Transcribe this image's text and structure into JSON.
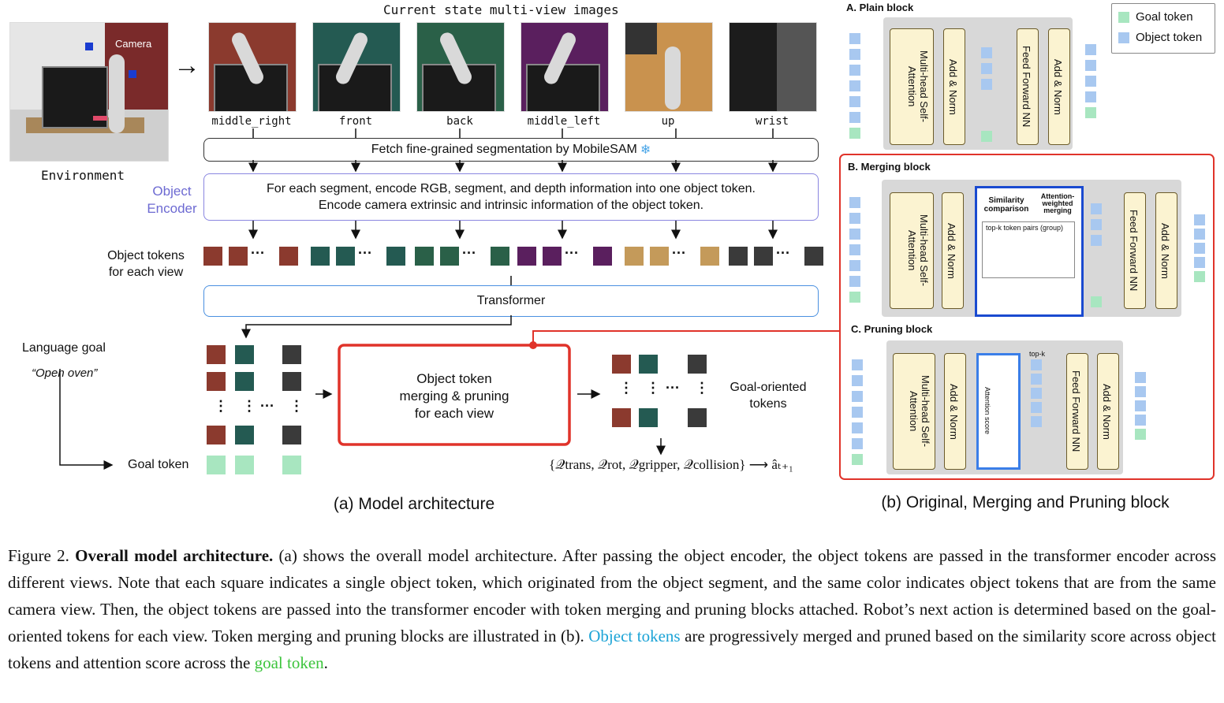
{
  "top_title": "Current state multi-view images",
  "environment_label": "Environment",
  "camera_label": "Camera",
  "views": [
    {
      "name": "middle_right",
      "color": "#8b3a2e"
    },
    {
      "name": "front",
      "color": "#245a52"
    },
    {
      "name": "back",
      "color": "#2a6048"
    },
    {
      "name": "middle_left",
      "color": "#5a1f5e"
    },
    {
      "name": "up",
      "color": "#c49a5a"
    },
    {
      "name": "wrist",
      "color": "#3a3a3a"
    }
  ],
  "mobilesam_bar": "Fetch fine-grained segmentation by MobileSAM",
  "snowflake": "❄",
  "object_encoder_label_1": "Object",
  "object_encoder_label_2": "Encoder",
  "encoder_line_1": "For each segment, encode RGB, segment, and depth information into one object token.",
  "encoder_line_2": "Encode camera extrinsic and intrinsic information of the object token.",
  "object_tokens_label_1": "Object tokens",
  "object_tokens_label_2": "for each view",
  "transformer_label": "Transformer",
  "language_goal": "Language goal",
  "language_goal_quote": "“Open oven”",
  "goal_token_label": "Goal token",
  "merge_box_1": "Object token",
  "merge_box_2": "merging & pruning",
  "merge_box_3": "for each view",
  "goal_oriented_1": "Goal-oriented",
  "goal_oriented_2": "tokens",
  "q_formula": "{𝒬trans, 𝒬rot, 𝒬gripper, 𝒬collision} ⟶ âₜ₊₁",
  "caption_a": "(a) Model architecture",
  "caption_b": "(b) Original, Merging and Pruning block",
  "legend": {
    "goal": "Goal token",
    "object": "Object token",
    "goal_color": "#a8e6c0",
    "object_color": "#a8c8f0"
  },
  "plain_block": {
    "title": "A. Plain block",
    "mhsa": "Multi-head Self-Attention",
    "addnorm1": "Add & Norm",
    "ffn": "Feed Forward NN",
    "addnorm2": "Add & Norm"
  },
  "merging_block": {
    "title": "B. Merging block",
    "mhsa": "Multi-head Self-Attention",
    "addnorm1": "Add & Norm",
    "similarity": "Similarity comparison",
    "attn_weighted": "Attention-weighted merging",
    "topk_pairs": "top-k token pairs (group)",
    "ffn": "Feed Forward NN",
    "addnorm2": "Add & Norm"
  },
  "pruning_block": {
    "title": "C. Pruning block",
    "mhsa": "Multi-head Self-Attention",
    "addnorm1": "Add & Norm",
    "attention_score": "Attention score",
    "topk": "top-k",
    "ffn": "Feed Forward NN",
    "addnorm2": "Add & Norm"
  },
  "caption": {
    "fig": "Figure 2.",
    "bold": "Overall model architecture.",
    "t1": " (a) shows the overall model architecture. After passing the object encoder, the object tokens are passed in the transformer encoder across different views. Note that each square indicates a single object token, which originated from the object segment, and the same color indicates object tokens that are from the same camera view. Then, the object tokens are passed into the transformer encoder with token merging and pruning blocks attached. Robot’s next action is determined based on the goal-oriented tokens for each view. Token merging and pruning blocks are illustrated in (b). ",
    "object_tokens": "Object tokens",
    "t2": " are progressively merged and pruned based on the similarity score across object tokens and attention score across the ",
    "goal_token": "goal token",
    "t3": ".",
    "object_color": "#1ba3d6",
    "goal_color": "#3cc43c"
  }
}
